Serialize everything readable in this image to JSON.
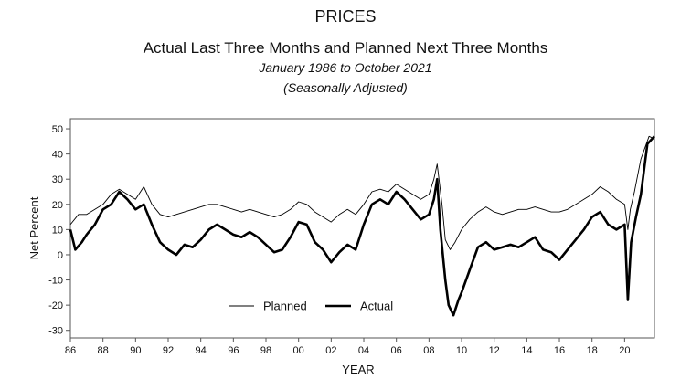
{
  "chart_data": {
    "type": "line",
    "title": "PRICES",
    "subtitle": "Actual Last Three Months and Planned Next Three Months",
    "date_range": "January 1986 to October 2021",
    "adjustment": "(Seasonally Adjusted)",
    "xlabel": "YEAR",
    "ylabel": "Net Percent",
    "xlim": [
      1986,
      2021.83
    ],
    "ylim": [
      -33,
      54
    ],
    "yticks": [
      -30,
      -20,
      -10,
      0,
      10,
      20,
      30,
      40,
      50
    ],
    "xticks": [
      "86",
      "88",
      "90",
      "92",
      "94",
      "96",
      "98",
      "00",
      "02",
      "04",
      "06",
      "08",
      "10",
      "12",
      "14",
      "16",
      "18",
      "20"
    ],
    "xtick_years": [
      1986,
      1988,
      1990,
      1992,
      1994,
      1996,
      1998,
      2000,
      2002,
      2004,
      2006,
      2008,
      2010,
      2012,
      2014,
      2016,
      2018,
      2020
    ],
    "legend": {
      "placement": "bottom-center"
    },
    "series": [
      {
        "name": "Planned",
        "style": "thin",
        "points": [
          [
            1986.0,
            12
          ],
          [
            1986.5,
            16
          ],
          [
            1987.0,
            16
          ],
          [
            1987.5,
            18
          ],
          [
            1988.0,
            20
          ],
          [
            1988.5,
            24
          ],
          [
            1989.0,
            26
          ],
          [
            1989.5,
            24
          ],
          [
            1990.0,
            22
          ],
          [
            1990.5,
            27
          ],
          [
            1991.0,
            20
          ],
          [
            1991.5,
            16
          ],
          [
            1992.0,
            15
          ],
          [
            1992.5,
            16
          ],
          [
            1993.0,
            17
          ],
          [
            1993.5,
            18
          ],
          [
            1994.0,
            19
          ],
          [
            1994.5,
            20
          ],
          [
            1995.0,
            20
          ],
          [
            1995.5,
            19
          ],
          [
            1996.0,
            18
          ],
          [
            1996.5,
            17
          ],
          [
            1997.0,
            18
          ],
          [
            1997.5,
            17
          ],
          [
            1998.0,
            16
          ],
          [
            1998.5,
            15
          ],
          [
            1999.0,
            16
          ],
          [
            1999.5,
            18
          ],
          [
            2000.0,
            21
          ],
          [
            2000.5,
            20
          ],
          [
            2001.0,
            17
          ],
          [
            2001.5,
            15
          ],
          [
            2002.0,
            13
          ],
          [
            2002.5,
            16
          ],
          [
            2003.0,
            18
          ],
          [
            2003.5,
            16
          ],
          [
            2004.0,
            20
          ],
          [
            2004.5,
            25
          ],
          [
            2005.0,
            26
          ],
          [
            2005.5,
            25
          ],
          [
            2006.0,
            28
          ],
          [
            2006.5,
            26
          ],
          [
            2007.0,
            24
          ],
          [
            2007.5,
            22
          ],
          [
            2008.0,
            24
          ],
          [
            2008.3,
            30
          ],
          [
            2008.5,
            36
          ],
          [
            2008.8,
            20
          ],
          [
            2009.0,
            6
          ],
          [
            2009.3,
            2
          ],
          [
            2009.6,
            5
          ],
          [
            2010.0,
            10
          ],
          [
            2010.5,
            14
          ],
          [
            2011.0,
            17
          ],
          [
            2011.5,
            19
          ],
          [
            2012.0,
            17
          ],
          [
            2012.5,
            16
          ],
          [
            2013.0,
            17
          ],
          [
            2013.5,
            18
          ],
          [
            2014.0,
            18
          ],
          [
            2014.5,
            19
          ],
          [
            2015.0,
            18
          ],
          [
            2015.5,
            17
          ],
          [
            2016.0,
            17
          ],
          [
            2016.5,
            18
          ],
          [
            2017.0,
            20
          ],
          [
            2017.5,
            22
          ],
          [
            2018.0,
            24
          ],
          [
            2018.5,
            27
          ],
          [
            2019.0,
            25
          ],
          [
            2019.5,
            22
          ],
          [
            2020.0,
            20
          ],
          [
            2020.2,
            10
          ],
          [
            2020.35,
            18
          ],
          [
            2020.6,
            25
          ],
          [
            2021.0,
            38
          ],
          [
            2021.5,
            47
          ],
          [
            2021.83,
            46
          ]
        ]
      },
      {
        "name": "Actual",
        "style": "thick",
        "points": [
          [
            1986.0,
            10
          ],
          [
            1986.3,
            2
          ],
          [
            1986.7,
            5
          ],
          [
            1987.0,
            8
          ],
          [
            1987.5,
            12
          ],
          [
            1988.0,
            18
          ],
          [
            1988.5,
            20
          ],
          [
            1989.0,
            25
          ],
          [
            1989.5,
            22
          ],
          [
            1990.0,
            18
          ],
          [
            1990.5,
            20
          ],
          [
            1991.0,
            12
          ],
          [
            1991.5,
            5
          ],
          [
            1992.0,
            2
          ],
          [
            1992.5,
            0
          ],
          [
            1993.0,
            4
          ],
          [
            1993.5,
            3
          ],
          [
            1994.0,
            6
          ],
          [
            1994.5,
            10
          ],
          [
            1995.0,
            12
          ],
          [
            1995.5,
            10
          ],
          [
            1996.0,
            8
          ],
          [
            1996.5,
            7
          ],
          [
            1997.0,
            9
          ],
          [
            1997.5,
            7
          ],
          [
            1998.0,
            4
          ],
          [
            1998.5,
            1
          ],
          [
            1999.0,
            2
          ],
          [
            1999.5,
            7
          ],
          [
            2000.0,
            13
          ],
          [
            2000.5,
            12
          ],
          [
            2001.0,
            5
          ],
          [
            2001.5,
            2
          ],
          [
            2002.0,
            -3
          ],
          [
            2002.5,
            1
          ],
          [
            2003.0,
            4
          ],
          [
            2003.5,
            2
          ],
          [
            2004.0,
            12
          ],
          [
            2004.5,
            20
          ],
          [
            2005.0,
            22
          ],
          [
            2005.5,
            20
          ],
          [
            2006.0,
            25
          ],
          [
            2006.5,
            22
          ],
          [
            2007.0,
            18
          ],
          [
            2007.5,
            14
          ],
          [
            2008.0,
            16
          ],
          [
            2008.3,
            22
          ],
          [
            2008.5,
            30
          ],
          [
            2008.7,
            10
          ],
          [
            2009.0,
            -10
          ],
          [
            2009.2,
            -20
          ],
          [
            2009.5,
            -24
          ],
          [
            2009.8,
            -18
          ],
          [
            2010.0,
            -15
          ],
          [
            2010.5,
            -6
          ],
          [
            2011.0,
            3
          ],
          [
            2011.5,
            5
          ],
          [
            2012.0,
            2
          ],
          [
            2012.5,
            3
          ],
          [
            2013.0,
            4
          ],
          [
            2013.5,
            3
          ],
          [
            2014.0,
            5
          ],
          [
            2014.5,
            7
          ],
          [
            2015.0,
            2
          ],
          [
            2015.5,
            1
          ],
          [
            2016.0,
            -2
          ],
          [
            2016.5,
            2
          ],
          [
            2017.0,
            6
          ],
          [
            2017.5,
            10
          ],
          [
            2018.0,
            15
          ],
          [
            2018.5,
            17
          ],
          [
            2019.0,
            12
          ],
          [
            2019.5,
            10
          ],
          [
            2020.0,
            12
          ],
          [
            2020.2,
            -18
          ],
          [
            2020.4,
            5
          ],
          [
            2020.7,
            15
          ],
          [
            2021.0,
            24
          ],
          [
            2021.4,
            44
          ],
          [
            2021.83,
            47
          ]
        ]
      }
    ]
  }
}
